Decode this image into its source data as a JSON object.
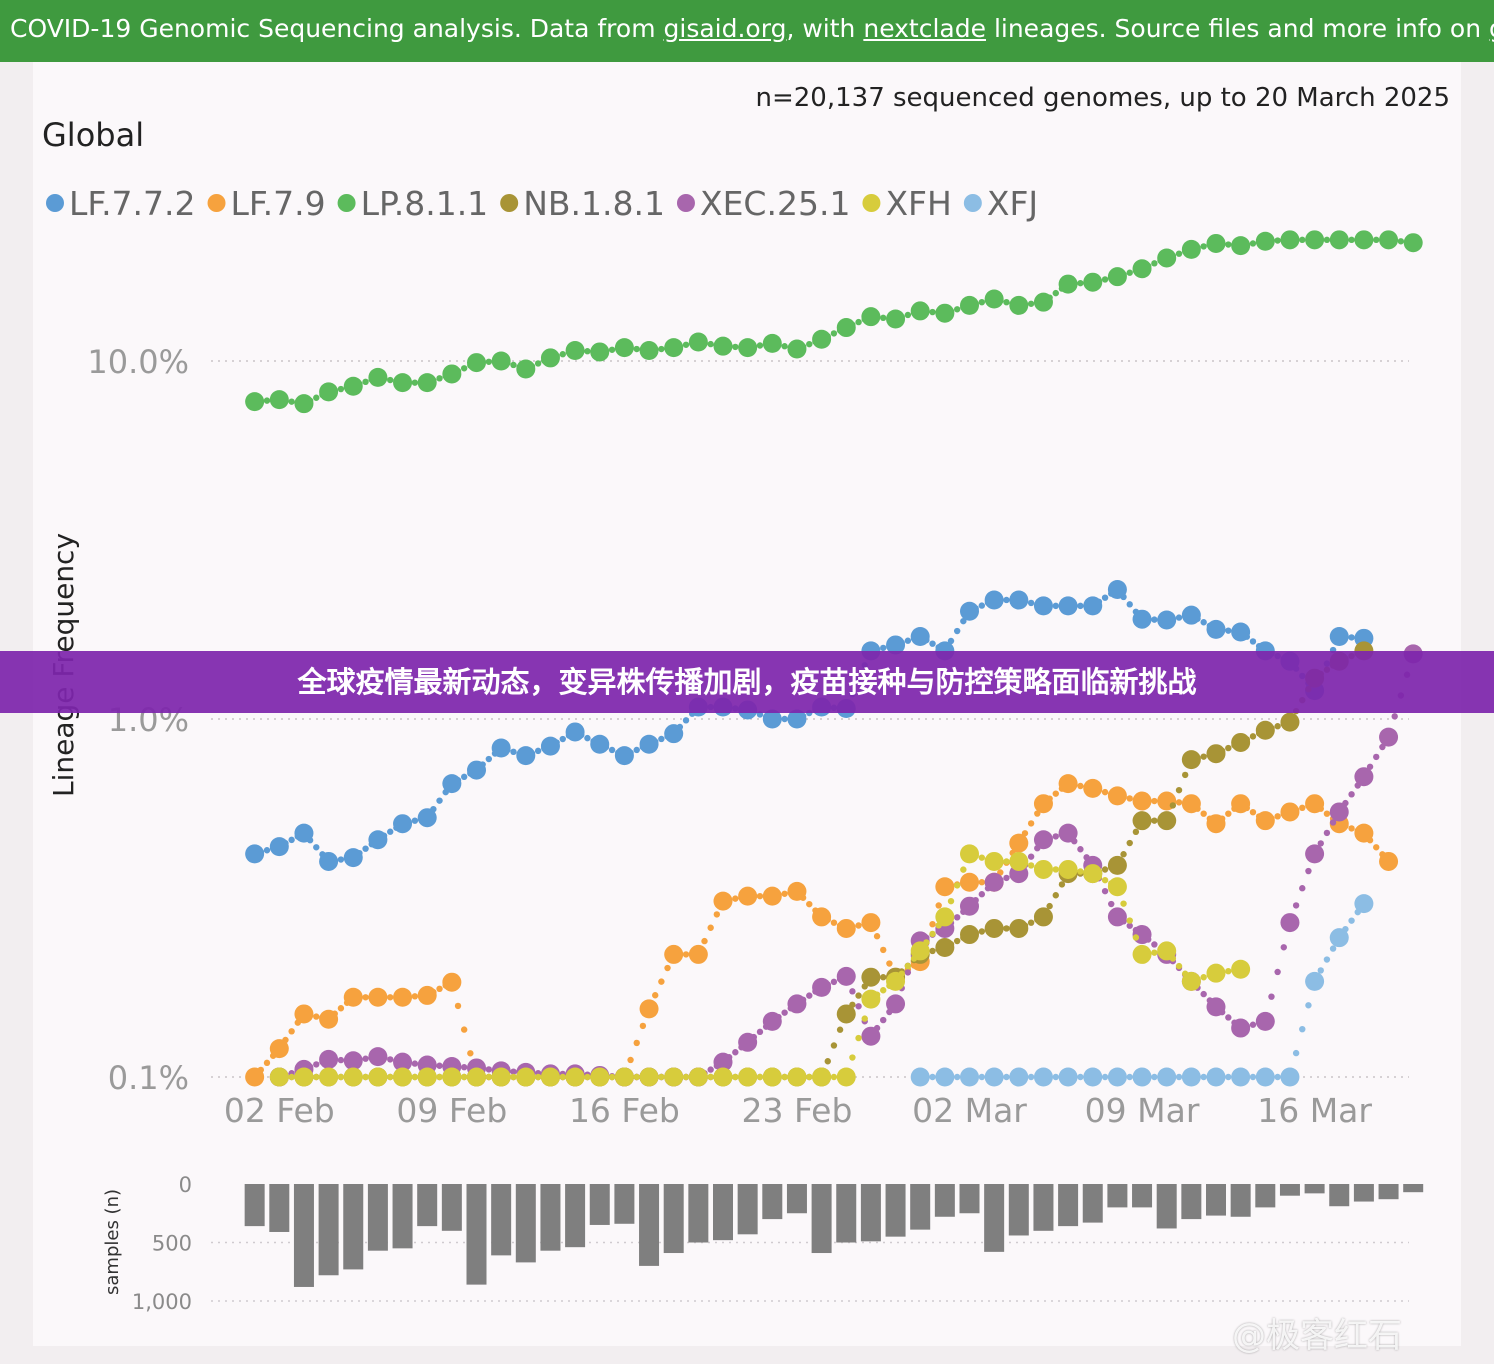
{
  "header": {
    "text_1": "COVID-19 Genomic Sequencing analysis. Data from ",
    "link_gisaid": "gisaid.org",
    "text_2": ", with ",
    "link_nextclade": "nextclade",
    "text_3": " lineages. Source files and more info on ",
    "link_github": "github",
    "text_4": "."
  },
  "overlay": {
    "headline": "全球疫情最新动态，变异株传播加剧，疫苗接种与防控策略面临新挑战"
  },
  "watermark": {
    "text": "@极客红石"
  },
  "colors": {
    "header_bg": "#3f9a3f",
    "overlay_bg": "#7e26ac",
    "bar": "#7f7f7f"
  },
  "chart_data": [
    {
      "type": "line",
      "title": "Global",
      "subtitle": "n=20,137 sequenced genomes, up to 20 March 2025",
      "ylabel": "Lineage Frequency",
      "xlabel": "",
      "yscale": "log",
      "ylim": [
        0.1,
        25
      ],
      "yticks": [
        {
          "value": 0.1,
          "label": "0.1%"
        },
        {
          "value": 1.0,
          "label": "1.0%"
        },
        {
          "value": 10.0,
          "label": "10.0%"
        }
      ],
      "x_start": "2025-01-31",
      "x_end": "2025-03-20",
      "xticks": [
        {
          "date": "2025-02-02",
          "label": "02 Feb"
        },
        {
          "date": "2025-02-09",
          "label": "09 Feb"
        },
        {
          "date": "2025-02-16",
          "label": "16 Feb"
        },
        {
          "date": "2025-02-23",
          "label": "23 Feb"
        },
        {
          "date": "2025-03-02",
          "label": "02 Mar"
        },
        {
          "date": "2025-03-09",
          "label": "09 Mar"
        },
        {
          "date": "2025-03-16",
          "label": "16 Mar"
        }
      ],
      "grid": true,
      "legend_position": "top-left",
      "series": [
        {
          "name": "LF.7.7.2",
          "color": "#5b9bd5",
          "start": "2025-02-01",
          "values": [
            0.42,
            0.44,
            0.48,
            0.4,
            0.41,
            0.46,
            0.51,
            0.53,
            0.66,
            0.72,
            0.83,
            0.79,
            0.84,
            0.92,
            0.85,
            0.79,
            0.85,
            0.91,
            1.08,
            1.08,
            1.06,
            1.0,
            1.0,
            1.08,
            1.07,
            1.55,
            1.61,
            1.7,
            1.55,
            2.0,
            2.15,
            2.15,
            2.07,
            2.07,
            2.07,
            2.3,
            1.9,
            1.89,
            1.95,
            1.78,
            1.75,
            1.55,
            1.45,
            1.2,
            1.7,
            1.68
          ]
        },
        {
          "name": "LF.7.9",
          "color": "#f6a23e",
          "start": "2025-02-01",
          "values": [
            0.1,
            0.12,
            0.15,
            0.145,
            0.167,
            0.167,
            0.167,
            0.169,
            0.184,
            0.1,
            0.1,
            0.1,
            0.1,
            0.1,
            0.1,
            0.1,
            0.155,
            0.22,
            0.22,
            0.31,
            0.32,
            0.32,
            0.33,
            0.28,
            0.26,
            0.27,
            0.19,
            0.21,
            0.34,
            0.35,
            0.35,
            0.45,
            0.58,
            0.66,
            0.64,
            0.61,
            0.59,
            0.59,
            0.58,
            0.51,
            0.58,
            0.52,
            0.55,
            0.58,
            0.51,
            0.48,
            0.4
          ]
        },
        {
          "name": "LP.8.1.1",
          "color": "#5cbb5c",
          "start": "2025-02-01",
          "values": [
            7.7,
            7.8,
            7.6,
            8.2,
            8.5,
            9.0,
            8.7,
            8.7,
            9.2,
            9.9,
            10.0,
            9.5,
            10.2,
            10.7,
            10.6,
            10.9,
            10.7,
            10.9,
            11.3,
            11.0,
            10.9,
            11.2,
            10.8,
            11.5,
            12.4,
            13.3,
            13.1,
            13.8,
            13.6,
            14.3,
            14.9,
            14.3,
            14.6,
            16.4,
            16.6,
            17.2,
            18.1,
            19.4,
            20.5,
            21.3,
            21.0,
            21.6,
            21.8,
            21.8,
            21.8,
            21.8,
            21.8,
            21.4
          ]
        },
        {
          "name": "NB.1.8.1",
          "color": "#a89436",
          "start": "2025-02-02",
          "values": [
            0.1,
            0.1,
            0.1,
            0.1,
            0.1,
            0.1,
            0.1,
            0.1,
            0.1,
            0.1,
            0.1,
            0.1,
            0.1,
            0.1,
            0.1,
            0.1,
            0.1,
            0.1,
            0.1,
            0.1,
            0.1,
            0.1,
            0.1,
            0.15,
            0.19,
            0.19,
            0.22,
            0.23,
            0.25,
            0.26,
            0.26,
            0.28,
            0.37,
            0.37,
            0.39,
            0.52,
            0.52,
            0.77,
            0.8,
            0.86,
            0.93,
            0.98,
            1.3,
            1.45,
            1.55
          ]
        },
        {
          "name": "XEC.25.1",
          "color": "#a866ad",
          "start": "2025-02-02",
          "values": [
            0.1,
            0.105,
            0.112,
            0.111,
            0.114,
            0.11,
            0.108,
            0.107,
            0.106,
            0.104,
            0.103,
            0.102,
            0.102,
            0.101,
            0.1,
            0.1,
            0.1,
            0.1,
            0.11,
            0.125,
            0.143,
            0.16,
            0.178,
            0.191,
            0.13,
            0.16,
            0.24,
            0.26,
            0.3,
            0.35,
            0.37,
            0.46,
            0.48,
            0.39,
            0.28,
            0.25,
            0.22,
            0.185,
            0.157,
            0.137,
            0.143,
            0.27,
            0.42,
            0.55,
            0.69,
            0.89,
            1.52
          ]
        },
        {
          "name": "XFH",
          "color": "#d7cc3c",
          "start": "2025-02-02",
          "values": [
            0.1,
            0.1,
            0.1,
            0.1,
            0.1,
            0.1,
            0.1,
            0.1,
            0.1,
            0.1,
            0.1,
            0.1,
            0.1,
            0.1,
            0.1,
            0.1,
            0.1,
            0.1,
            0.1,
            0.1,
            0.1,
            0.1,
            0.1,
            0.1,
            0.165,
            0.185,
            0.225,
            0.28,
            0.42,
            0.4,
            0.4,
            0.38,
            0.38,
            0.37,
            0.34,
            0.22,
            0.225,
            0.185,
            0.195,
            0.2
          ]
        },
        {
          "name": "XFJ",
          "color": "#8cbde4",
          "start": "2025-02-28",
          "values": [
            0.1,
            0.1,
            0.1,
            0.1,
            0.1,
            0.1,
            0.1,
            0.1,
            0.1,
            0.1,
            0.1,
            0.1,
            0.1,
            0.1,
            0.1,
            0.1,
            0.185,
            0.245,
            0.305
          ]
        }
      ]
    },
    {
      "type": "bar",
      "ylabel": "samples (n)",
      "ylim": [
        0,
        1000
      ],
      "yticks": [
        {
          "value": 0,
          "label": "0"
        },
        {
          "value": 500,
          "label": "500"
        },
        {
          "value": 1000,
          "label": "1,000"
        }
      ],
      "orientation": "downward",
      "start": "2025-02-01",
      "values": [
        360,
        410,
        880,
        780,
        730,
        570,
        550,
        360,
        400,
        860,
        610,
        670,
        570,
        540,
        350,
        340,
        700,
        590,
        500,
        480,
        430,
        300,
        250,
        590,
        500,
        490,
        450,
        390,
        280,
        250,
        580,
        440,
        400,
        360,
        330,
        200,
        200,
        380,
        300,
        270,
        280,
        200,
        100,
        80,
        190,
        150,
        130,
        70
      ]
    }
  ]
}
